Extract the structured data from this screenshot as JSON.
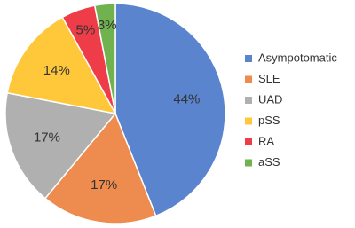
{
  "chart_data": {
    "type": "pie",
    "categories": [
      "Asympotomatic",
      "SLE",
      "UAD",
      "pSS",
      "RA",
      "aSS"
    ],
    "values": [
      44,
      17,
      17,
      14,
      5,
      3
    ],
    "value_labels": [
      "44%",
      "17%",
      "17%",
      "14%",
      "5%",
      "3%"
    ],
    "colors": [
      "#5b84cf",
      "#ee8b4e",
      "#b0b0b0",
      "#ffc83a",
      "#ee3d48",
      "#6fb24f"
    ],
    "legend": "right"
  }
}
